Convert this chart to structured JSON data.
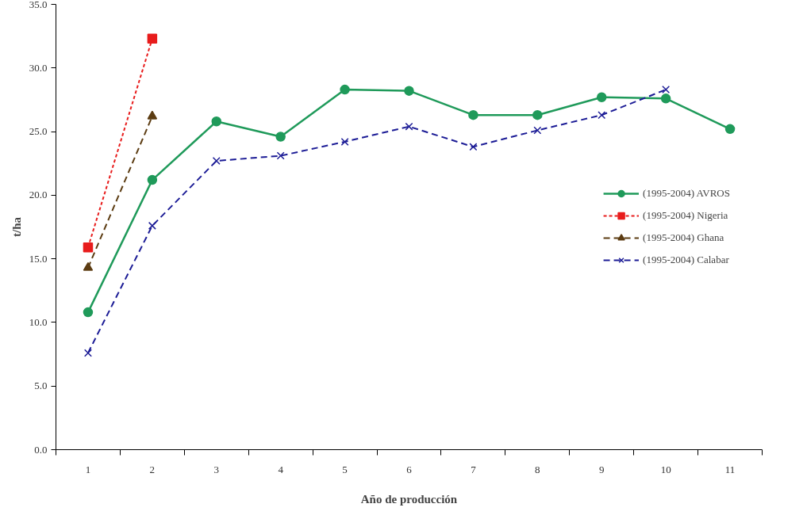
{
  "chart_data": {
    "type": "line",
    "xlabel": "Año de producción",
    "ylabel": "t/ha",
    "categories": [
      "1",
      "2",
      "3",
      "4",
      "5",
      "6",
      "7",
      "8",
      "9",
      "10",
      "11"
    ],
    "series": [
      {
        "name": "(1995-2004) AVROS",
        "color": "#1f9a5a",
        "marker": "circle",
        "line_style": "solid",
        "values": [
          10.8,
          21.2,
          25.8,
          24.6,
          28.3,
          28.2,
          26.3,
          26.3,
          27.7,
          27.6,
          25.2
        ]
      },
      {
        "name": "(1995-2004) Nigeria",
        "color": "#e81c1c",
        "marker": "square",
        "line_style": "dotted",
        "values": [
          15.9,
          32.3,
          null,
          null,
          null,
          null,
          null,
          null,
          null,
          null,
          null
        ]
      },
      {
        "name": "(1995-2004) Ghana",
        "color": "#5c3c12",
        "marker": "triangle",
        "line_style": "dashed",
        "values": [
          14.3,
          26.2,
          null,
          null,
          null,
          null,
          null,
          null,
          null,
          null,
          null
        ]
      },
      {
        "name": "(1995-2004) Calabar",
        "color": "#1c1c96",
        "marker": "cross",
        "line_style": "dashed",
        "values": [
          7.6,
          17.6,
          22.7,
          23.1,
          24.2,
          25.4,
          23.8,
          25.1,
          26.3,
          28.3,
          null
        ]
      }
    ],
    "ylim": [
      0,
      35
    ],
    "yticks": [
      {
        "value": 0,
        "label": "0.0"
      },
      {
        "value": 5,
        "label": "5.0"
      },
      {
        "value": 10,
        "label": "10.0"
      },
      {
        "value": 15,
        "label": "15.0"
      },
      {
        "value": 20,
        "label": "20.0"
      },
      {
        "value": 25,
        "label": "25.0"
      },
      {
        "value": 30,
        "label": "30.0"
      },
      {
        "value": 35,
        "label": "35.0"
      }
    ],
    "grid": false,
    "legend": "right"
  }
}
